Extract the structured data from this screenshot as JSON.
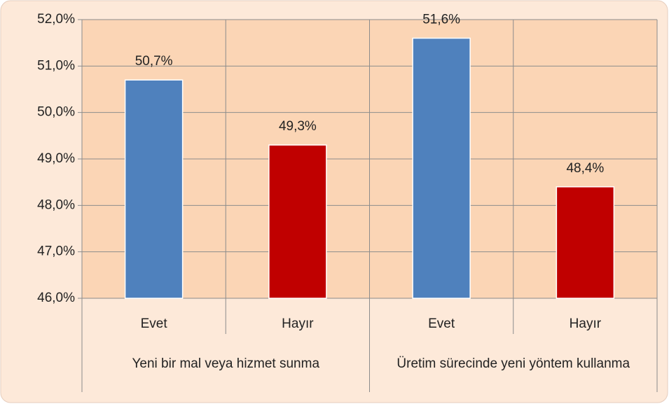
{
  "chart_data": {
    "type": "bar",
    "categories": [
      "Evet",
      "Hayır",
      "Evet",
      "Hayır"
    ],
    "groups": [
      "Yeni bir mal veya hizmet sunma",
      "Üretim sürecinde yeni yöntem kullanma"
    ],
    "values": [
      50.7,
      49.3,
      51.6,
      48.4
    ],
    "value_labels": [
      "50,7%",
      "49,3%",
      "51,6%",
      "48,4%"
    ],
    "colors": [
      "#4f81bd",
      "#c00000",
      "#4f81bd",
      "#c00000"
    ],
    "ylim": [
      46,
      52
    ],
    "yticks": [
      {
        "value": 46,
        "label": "46,0%"
      },
      {
        "value": 47,
        "label": "47,0%"
      },
      {
        "value": 48,
        "label": "48,0%"
      },
      {
        "value": 49,
        "label": "49,0%"
      },
      {
        "value": 50,
        "label": "50,0%"
      },
      {
        "value": 51,
        "label": "51,0%"
      },
      {
        "value": 52,
        "label": "52,0%"
      }
    ],
    "grid": true
  }
}
